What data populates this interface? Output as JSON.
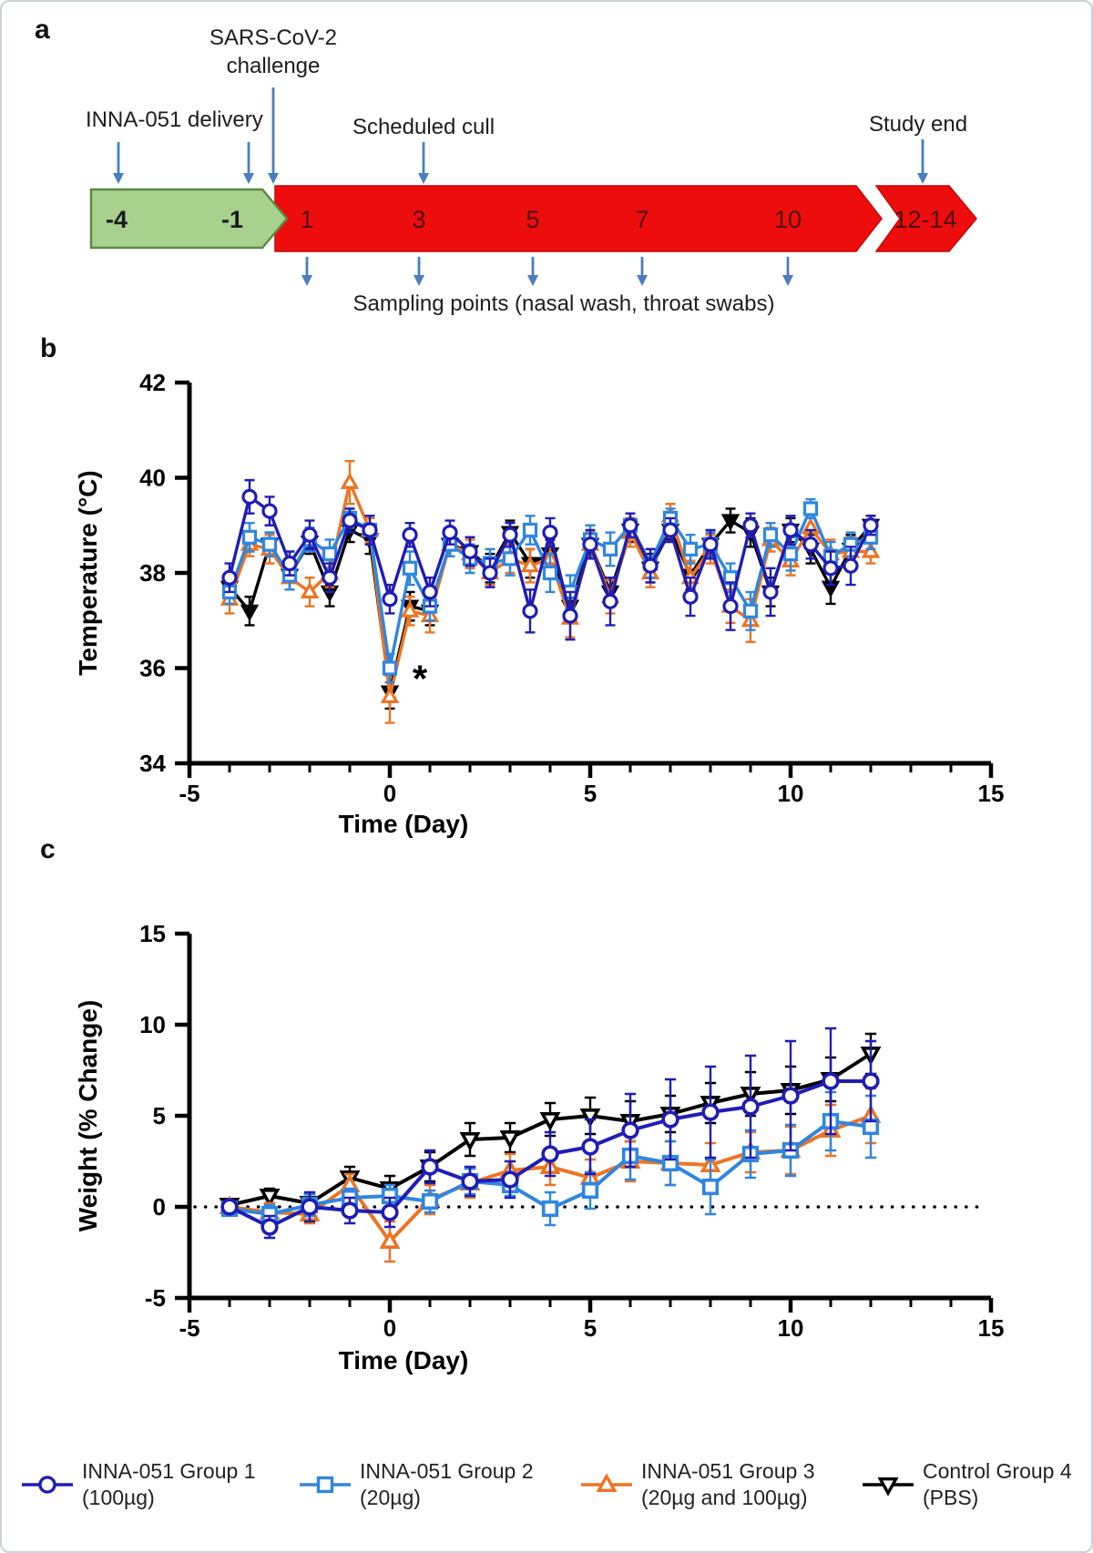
{
  "panel_a": {
    "label": "a",
    "sars_line1": "SARS-CoV-2",
    "sars_line2": "challenge",
    "inna_delivery": "INNA-051 delivery",
    "scheduled_cull": "Scheduled cull",
    "study_end": "Study end",
    "sampling": "Sampling points (nasal wash, throat swabs)",
    "pre_phase_days": [
      "-4",
      "-1"
    ],
    "challenge_phase_days": [
      "1",
      "3",
      "5",
      "7",
      "10"
    ],
    "end_phase_label": "12-14",
    "colors": {
      "pre_fill": "#a9d18e",
      "pre_stroke": "#5d8a42",
      "phase_fill": "#ee0d0d",
      "phase_stroke": "#c40808",
      "day_text_on_green": "#1a1a1a",
      "day_text_on_red": "#4d0f0f",
      "arrow": "#4a7ec0"
    }
  },
  "chart_data": [
    {
      "id": "temperature",
      "panel_label": "b",
      "type": "line",
      "title": "",
      "xlabel": "Time (Day)",
      "ylabel": "Temperature (°C)",
      "xlim": [
        -5,
        15
      ],
      "ylim": [
        34,
        42
      ],
      "xticks": [
        -5,
        0,
        5,
        10,
        15
      ],
      "xminor_step": 1,
      "yticks": [
        34,
        36,
        38,
        40,
        42
      ],
      "legend_position": "none",
      "grid": false,
      "x": [
        -4,
        -3.5,
        -3,
        -2.5,
        -2,
        -1.5,
        -1,
        -0.5,
        0,
        0.5,
        1,
        1.5,
        2,
        2.5,
        3,
        3.5,
        4,
        4.5,
        5,
        5.5,
        6,
        6.5,
        7,
        7.5,
        8,
        8.5,
        9,
        9.5,
        10,
        10.5,
        11,
        11.5,
        12
      ],
      "series": [
        {
          "name": "Control Group 4 (PBS)",
          "color": "#000000",
          "marker": "triangle-down",
          "filled": true,
          "values": [
            37.7,
            37.2,
            38.6,
            37.95,
            38.65,
            37.6,
            38.9,
            38.7,
            35.5,
            37.3,
            37.2,
            38.6,
            38.45,
            38.1,
            38.85,
            38.2,
            38.4,
            37.3,
            38.6,
            37.6,
            38.9,
            38.1,
            38.9,
            37.95,
            38.6,
            39.1,
            38.85,
            37.6,
            38.9,
            38.5,
            37.7,
            38.5,
            39.0
          ],
          "errors": [
            0.3,
            0.3,
            0.25,
            0.3,
            0.25,
            0.3,
            0.25,
            0.3,
            0.35,
            0.3,
            0.3,
            0.25,
            0.3,
            0.3,
            0.25,
            0.3,
            0.3,
            0.35,
            0.25,
            0.3,
            0.25,
            0.3,
            0.2,
            0.3,
            0.25,
            0.25,
            0.3,
            0.3,
            0.25,
            0.3,
            0.35,
            0.3,
            0.2
          ]
        },
        {
          "name": "INNA-051 Group 3 (20µg and 100µg)",
          "color": "#ed7423",
          "marker": "triangle-up",
          "filled": false,
          "values": [
            37.45,
            38.6,
            38.5,
            37.9,
            37.6,
            38.0,
            39.9,
            38.9,
            35.4,
            37.2,
            37.1,
            38.6,
            38.4,
            38.0,
            38.3,
            38.15,
            38.3,
            37.05,
            38.6,
            37.5,
            38.85,
            38.0,
            39.2,
            37.9,
            38.5,
            37.3,
            37.0,
            38.7,
            38.25,
            38.95,
            38.4,
            38.45,
            38.45
          ],
          "errors": [
            0.3,
            0.25,
            0.3,
            0.25,
            0.3,
            0.3,
            0.45,
            0.25,
            0.55,
            0.3,
            0.35,
            0.25,
            0.3,
            0.25,
            0.3,
            0.35,
            0.3,
            0.4,
            0.25,
            0.35,
            0.3,
            0.3,
            0.25,
            0.35,
            0.3,
            0.35,
            0.45,
            0.25,
            0.3,
            0.3,
            0.3,
            0.3,
            0.25
          ]
        },
        {
          "name": "INNA-051 Group 2 (20µg)",
          "color": "#2f86e0",
          "marker": "square",
          "filled": false,
          "values": [
            37.6,
            38.75,
            38.6,
            37.95,
            38.7,
            38.4,
            39.15,
            38.9,
            36.0,
            38.1,
            37.3,
            38.6,
            38.3,
            38.2,
            38.3,
            38.9,
            38.0,
            37.6,
            38.7,
            38.5,
            39.0,
            38.2,
            39.15,
            38.5,
            38.6,
            37.9,
            37.2,
            38.8,
            38.4,
            39.35,
            38.35,
            38.6,
            38.75
          ],
          "errors": [
            0.25,
            0.3,
            0.25,
            0.3,
            0.25,
            0.3,
            0.2,
            0.3,
            0.3,
            0.35,
            0.3,
            0.25,
            0.3,
            0.3,
            0.35,
            0.3,
            0.4,
            0.35,
            0.3,
            0.35,
            0.25,
            0.3,
            0.2,
            0.3,
            0.25,
            0.3,
            0.4,
            0.25,
            0.35,
            0.2,
            0.3,
            0.25,
            0.25
          ]
        },
        {
          "name": "INNA-051 Group 1 (100µg)",
          "color": "#1f1db5",
          "marker": "circle",
          "filled": false,
          "values": [
            37.9,
            39.6,
            39.3,
            38.2,
            38.8,
            37.9,
            39.1,
            38.9,
            37.45,
            38.8,
            37.6,
            38.85,
            38.45,
            38.0,
            38.8,
            37.2,
            38.85,
            37.1,
            38.6,
            37.4,
            39.0,
            38.15,
            38.9,
            37.5,
            38.6,
            37.3,
            39.0,
            37.6,
            38.9,
            38.6,
            38.1,
            38.15,
            39.0
          ],
          "errors": [
            0.3,
            0.35,
            0.3,
            0.25,
            0.3,
            0.3,
            0.25,
            0.3,
            0.3,
            0.25,
            0.3,
            0.25,
            0.3,
            0.3,
            0.25,
            0.45,
            0.3,
            0.5,
            0.3,
            0.5,
            0.25,
            0.35,
            0.25,
            0.4,
            0.3,
            0.5,
            0.25,
            0.5,
            0.3,
            0.3,
            0.35,
            0.4,
            0.2
          ]
        }
      ],
      "annotations": [
        {
          "text": "*",
          "x": 0.75,
          "y": 35.5
        }
      ]
    },
    {
      "id": "weight",
      "panel_label": "c",
      "type": "line",
      "title": "",
      "xlabel": "Time (Day)",
      "ylabel": "Weight (% Change)",
      "xlim": [
        -5,
        15
      ],
      "ylim": [
        -5,
        15
      ],
      "xticks": [
        -5,
        0,
        5,
        10,
        15
      ],
      "xminor_step": 1,
      "yticks": [
        -5,
        0,
        5,
        10,
        15
      ],
      "zero_line": {
        "y": 0,
        "style": "dotted"
      },
      "legend_position": "bottom",
      "grid": false,
      "x": [
        -4,
        -3,
        -2,
        -1,
        0,
        1,
        2,
        3,
        4,
        5,
        6,
        7,
        8,
        9,
        10,
        11,
        12
      ],
      "series": [
        {
          "name": "Control Group 4 (PBS)",
          "color": "#000000",
          "marker": "triangle-down",
          "filled": false,
          "values": [
            0.1,
            0.6,
            0.2,
            1.6,
            1.0,
            2.2,
            3.7,
            3.8,
            4.8,
            5.0,
            4.7,
            5.1,
            5.7,
            6.2,
            6.4,
            7.0,
            8.4
          ],
          "errors": [
            0.3,
            0.4,
            0.5,
            0.6,
            0.7,
            0.8,
            0.9,
            0.8,
            0.9,
            1.0,
            1.1,
            1.0,
            1.1,
            1.2,
            1.3,
            1.2,
            1.1
          ]
        },
        {
          "name": "INNA-051 Group 3 (20µg and 100µg)",
          "color": "#ed7423",
          "marker": "triangle-up",
          "filled": false,
          "values": [
            0.0,
            -0.3,
            -0.4,
            1.2,
            -1.9,
            0.4,
            1.3,
            2.0,
            2.2,
            1.6,
            2.5,
            2.4,
            2.3,
            3.0,
            3.1,
            4.2,
            5.0
          ],
          "errors": [
            0.3,
            0.5,
            0.5,
            0.6,
            1.1,
            0.8,
            0.8,
            0.9,
            1.0,
            1.0,
            1.1,
            1.2,
            1.2,
            1.1,
            1.3,
            1.4,
            1.5
          ]
        },
        {
          "name": "INNA-051 Group 2 (20µg)",
          "color": "#2f86e0",
          "marker": "square",
          "filled": false,
          "values": [
            -0.1,
            -0.4,
            0.1,
            0.5,
            0.6,
            0.3,
            1.4,
            1.2,
            -0.1,
            0.9,
            2.8,
            2.4,
            1.1,
            2.9,
            3.1,
            4.7,
            4.4
          ],
          "errors": [
            0.3,
            0.5,
            0.6,
            0.5,
            0.6,
            0.6,
            0.7,
            0.6,
            0.9,
            1.0,
            1.3,
            1.2,
            1.5,
            1.3,
            1.4,
            1.6,
            1.7
          ]
        },
        {
          "name": "INNA-051 Group 1 (100µg)",
          "color": "#1f1db5",
          "marker": "circle",
          "filled": false,
          "values": [
            0.0,
            -1.1,
            0.0,
            -0.2,
            -0.3,
            2.2,
            1.4,
            1.5,
            2.9,
            3.3,
            4.2,
            4.8,
            5.2,
            5.5,
            6.1,
            6.9,
            6.9
          ],
          "errors": [
            0.3,
            0.6,
            0.8,
            0.7,
            0.8,
            0.9,
            0.8,
            1.0,
            1.2,
            1.5,
            2.0,
            2.2,
            2.5,
            2.8,
            3.0,
            2.9,
            2.2
          ]
        }
      ],
      "annotations": []
    }
  ],
  "legend": {
    "items": [
      {
        "name": "INNA-051 Group 1",
        "dose": "(100µg)",
        "color": "#1f1db5",
        "marker": "circle"
      },
      {
        "name": "INNA-051 Group 2",
        "dose": "(20µg)",
        "color": "#2f86e0",
        "marker": "square"
      },
      {
        "name": "INNA-051 Group 3",
        "dose": "(20µg and 100µg)",
        "color": "#ed7423",
        "marker": "triangle-up"
      },
      {
        "name": "Control Group 4",
        "dose": "(PBS)",
        "color": "#000000",
        "marker": "triangle-down"
      }
    ]
  }
}
